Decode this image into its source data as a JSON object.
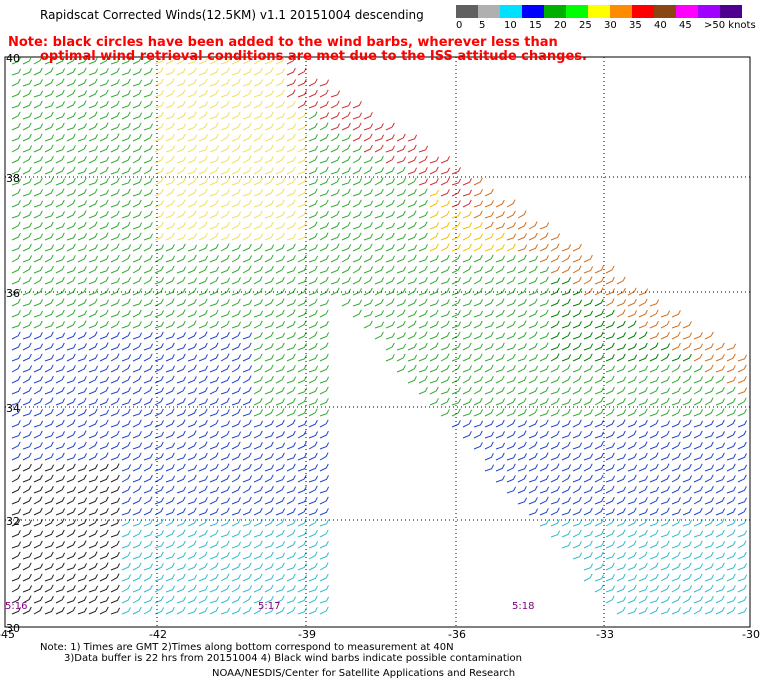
{
  "title": "Rapidscat Corrected Winds(12.5KM) v1.1 20151004 descending",
  "note": {
    "line1": "Note: black circles have been added to the wind barbs, wherever less than",
    "line2": "optimal wind retrieval conditions are met due to the ISS attitude changes."
  },
  "legend": {
    "labels": [
      "0",
      "5",
      "10",
      "15",
      "20",
      "25",
      "30",
      "35",
      "40",
      "45",
      ">50 knots"
    ],
    "colors": [
      "#606060",
      "#b0b0b0",
      "#00e0ff",
      "#0000ff",
      "#00b000",
      "#00ff00",
      "#ffff00",
      "#ff8c00",
      "#ff0000",
      "#8b4513",
      "#ff00ff",
      "#a000ff",
      "#500090"
    ]
  },
  "axes": {
    "x_ticks": [
      "-45",
      "-42",
      "-39",
      "-36",
      "-33",
      "-30"
    ],
    "y_ticks": [
      "40",
      "38",
      "36",
      "34",
      "32",
      "30"
    ]
  },
  "time_labels": [
    "5:16",
    "5:17",
    "5:18"
  ],
  "footer": {
    "line1": "Note: 1) Times are GMT 2)Times along bottom correspond to measurement at 40N",
    "line2": "3)Data buffer is 22 hrs from 20151004 4) Black wind barbs indicate possible contamination",
    "line3": "NOAA/NESDIS/Center for Satellite Applications and Research"
  }
}
